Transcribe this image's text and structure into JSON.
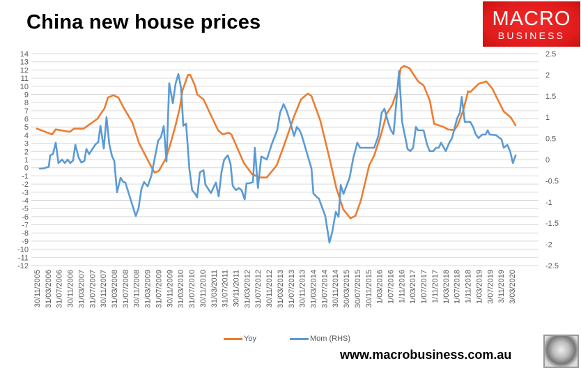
{
  "title": "China new house prices",
  "logo": {
    "line1": "MACRO",
    "line2": "BUSINESS",
    "color": "#e01b1b"
  },
  "website": "www.macrobusiness.com.au",
  "chart_data": {
    "type": "line",
    "title": "China new house prices",
    "x_tick_labels": [
      "30/11/2005",
      "31/03/2006",
      "31/07/2006",
      "30/11/2006",
      "31/03/2007",
      "31/07/2007",
      "30/11/2007",
      "31/03/2008",
      "31/07/2008",
      "30/11/2008",
      "31/03/2009",
      "31/07/2009",
      "30/11/2009",
      "31/03/2010",
      "31/07/2010",
      "30/11/2010",
      "31/03/2011",
      "31/07/2011",
      "30/11/2011",
      "31/03/2012",
      "31/07/2012",
      "30/11/2012",
      "31/03/2013",
      "31/07/2013",
      "30/11/2013",
      "31/03/2014",
      "31/07/2014",
      "30/11/2014",
      "30/03/2015",
      "30/07/2015",
      "30/11/2015",
      "1/03/2016",
      "1/07/2016",
      "1/11/2016",
      "1/03/2017",
      "1/07/2017",
      "1/11/2017",
      "1/03/2018",
      "1/07/2018",
      "1/11/2018",
      "1/03/2019",
      "3/07/2019",
      "3/11/2019",
      "3/03/2020"
    ],
    "x_tick_month_step": 4,
    "x_range_months": [
      0,
      174
    ],
    "left_axis": {
      "ylim": [
        -12,
        14
      ],
      "ticks": [
        "14",
        "13",
        "12",
        "11",
        "10",
        "9",
        "8",
        "7",
        "6",
        "5",
        "4",
        "3",
        "2",
        "1",
        "0",
        "-1",
        "-2",
        "-3",
        "-4",
        "-5",
        "-6",
        "-7",
        "-8",
        "-9",
        "-10",
        "-11",
        "-12"
      ]
    },
    "right_axis": {
      "ylim": [
        -2.5,
        2.5
      ],
      "ticks": [
        "2.5",
        "2",
        "1.5",
        "1",
        "0.5",
        "0",
        "-0.5",
        "-1",
        "-1.5",
        "-2",
        "-2.5"
      ]
    },
    "grid": true,
    "legend_position": "bottom",
    "series": [
      {
        "name": "Yoy",
        "axis": "left",
        "color": "#ed7d31",
        "points_month_value": [
          [
            0,
            4.8
          ],
          [
            5.5,
            4.1
          ],
          [
            6.8,
            4.7
          ],
          [
            11.9,
            4.4
          ],
          [
            13.4,
            4.8
          ],
          [
            16.9,
            4.8
          ],
          [
            21.9,
            6.0
          ],
          [
            24.5,
            7.3
          ],
          [
            25.7,
            8.6
          ],
          [
            27.7,
            8.9
          ],
          [
            29.5,
            8.6
          ],
          [
            31.5,
            7.3
          ],
          [
            34.5,
            5.6
          ],
          [
            37,
            3.0
          ],
          [
            39.6,
            1.3
          ],
          [
            41.6,
            0
          ],
          [
            42.6,
            -0.6
          ],
          [
            44.1,
            -0.4
          ],
          [
            46.6,
            1.1
          ],
          [
            48.4,
            3.0
          ],
          [
            50.2,
            5.2
          ],
          [
            51.7,
            7.3
          ],
          [
            52.7,
            9.5
          ],
          [
            54.7,
            11.4
          ],
          [
            55.5,
            11.4
          ],
          [
            57.3,
            10.0
          ],
          [
            58,
            9.0
          ],
          [
            60.3,
            8.4
          ],
          [
            63.6,
            6.0
          ],
          [
            65.6,
            4.6
          ],
          [
            67.3,
            4.1
          ],
          [
            69.4,
            4.3
          ],
          [
            70.4,
            4.1
          ],
          [
            74.9,
            0.6
          ],
          [
            77.9,
            -0.8
          ],
          [
            80.7,
            -1.2
          ],
          [
            83.2,
            -1.2
          ],
          [
            86.8,
            0.3
          ],
          [
            89.3,
            2.6
          ],
          [
            93.1,
            6.3
          ],
          [
            95.6,
            8.4
          ],
          [
            98.1,
            9.1
          ],
          [
            99.4,
            8.8
          ],
          [
            102.6,
            5.8
          ],
          [
            105.9,
            1.2
          ],
          [
            108.4,
            -2.5
          ],
          [
            110.9,
            -5.1
          ],
          [
            113.5,
            -6.2
          ],
          [
            115.3,
            -5.9
          ],
          [
            117.3,
            -4.0
          ],
          [
            120.3,
            0.3
          ],
          [
            122.1,
            1.5
          ],
          [
            124.6,
            4.1
          ],
          [
            126.6,
            6.6
          ],
          [
            128.6,
            7.7
          ],
          [
            130.4,
            9.4
          ],
          [
            131.7,
            12.2
          ],
          [
            132.9,
            12.5
          ],
          [
            134.9,
            12.2
          ],
          [
            138,
            10.6
          ],
          [
            140,
            10.1
          ],
          [
            142.2,
            8.3
          ],
          [
            143.8,
            5.4
          ],
          [
            145.5,
            5.2
          ],
          [
            147.3,
            5.0
          ],
          [
            148.8,
            4.7
          ],
          [
            151.1,
            4.6
          ],
          [
            152.3,
            5.2
          ],
          [
            154.4,
            7.1
          ],
          [
            156.1,
            9.4
          ],
          [
            156.9,
            9.3
          ],
          [
            159.9,
            10.3
          ],
          [
            162.7,
            10.6
          ],
          [
            164.9,
            9.7
          ],
          [
            166.2,
            8.8
          ],
          [
            169,
            6.9
          ],
          [
            171.5,
            6.2
          ],
          [
            173.3,
            5.2
          ]
        ]
      },
      {
        "name": "Mom (RHS)",
        "axis": "right",
        "color": "#5b9bd5",
        "points_month_value": [
          [
            1,
            -0.21
          ],
          [
            2.3,
            -0.21
          ],
          [
            4.3,
            -0.17
          ],
          [
            4.8,
            0.1
          ],
          [
            5.8,
            0.13
          ],
          [
            6.8,
            0.4
          ],
          [
            7.8,
            -0.08
          ],
          [
            9.1,
            0.0
          ],
          [
            10.1,
            -0.08
          ],
          [
            11.1,
            0.0
          ],
          [
            12.1,
            -0.08
          ],
          [
            13.1,
            -0.02
          ],
          [
            13.9,
            0.35
          ],
          [
            15.1,
            0.05
          ],
          [
            16.1,
            -0.07
          ],
          [
            17.2,
            -0.03
          ],
          [
            17.9,
            0.25
          ],
          [
            18.9,
            0.13
          ],
          [
            21.2,
            0.36
          ],
          [
            22.2,
            0.41
          ],
          [
            23,
            0.8
          ],
          [
            24.2,
            0.26
          ],
          [
            25.2,
            1.0
          ],
          [
            26.2,
            0.36
          ],
          [
            27.2,
            0.08
          ],
          [
            28,
            -0.03
          ],
          [
            29,
            -0.77
          ],
          [
            30.3,
            -0.43
          ],
          [
            31.3,
            -0.53
          ],
          [
            32,
            -0.54
          ],
          [
            35.8,
            -1.33
          ],
          [
            36.8,
            -1.15
          ],
          [
            37.8,
            -0.7
          ],
          [
            38.8,
            -0.53
          ],
          [
            40.1,
            -0.63
          ],
          [
            41.4,
            -0.38
          ],
          [
            43.9,
            0.45
          ],
          [
            44.9,
            0.53
          ],
          [
            45.9,
            0.79
          ],
          [
            46.9,
            -0.05
          ],
          [
            47.9,
            1.8
          ],
          [
            49.2,
            1.33
          ],
          [
            50.2,
            1.79
          ],
          [
            51.2,
            2.02
          ],
          [
            52.2,
            1.68
          ],
          [
            53,
            0.8
          ],
          [
            54,
            0.85
          ],
          [
            55.2,
            -0.23
          ],
          [
            56.2,
            -0.72
          ],
          [
            57.3,
            -0.81
          ],
          [
            58,
            -0.89
          ],
          [
            59,
            -0.3
          ],
          [
            60.3,
            -0.25
          ],
          [
            61,
            -0.59
          ],
          [
            63,
            -0.79
          ],
          [
            64.8,
            -0.54
          ],
          [
            65.8,
            -0.87
          ],
          [
            66.8,
            -0.3
          ],
          [
            67.8,
            0
          ],
          [
            69.1,
            0.1
          ],
          [
            70.1,
            -0.1
          ],
          [
            70.9,
            -0.62
          ],
          [
            72.1,
            -0.72
          ],
          [
            73.1,
            -0.67
          ],
          [
            74.1,
            -0.72
          ],
          [
            75.2,
            -0.94
          ],
          [
            75.9,
            -0.56
          ],
          [
            76.9,
            -0.56
          ],
          [
            78.2,
            -0.53
          ],
          [
            78.9,
            0.28
          ],
          [
            80,
            -0.67
          ],
          [
            81.2,
            0.07
          ],
          [
            82.5,
            0.03
          ],
          [
            83.2,
            0
          ],
          [
            85,
            0.36
          ],
          [
            87,
            0.7
          ],
          [
            88,
            1.1
          ],
          [
            89.3,
            1.31
          ],
          [
            90.5,
            1.14
          ],
          [
            91.8,
            0.86
          ],
          [
            93.1,
            0.56
          ],
          [
            94.1,
            0.77
          ],
          [
            95.1,
            0.69
          ],
          [
            95.8,
            0.59
          ],
          [
            99.4,
            -0.21
          ],
          [
            100.1,
            -0.8
          ],
          [
            101.4,
            -0.89
          ],
          [
            102.1,
            -0.92
          ],
          [
            104.4,
            -1.33
          ],
          [
            105.9,
            -1.96
          ],
          [
            106.9,
            -1.71
          ],
          [
            108.2,
            -1.23
          ],
          [
            109.2,
            -1.35
          ],
          [
            110,
            -0.6
          ],
          [
            111,
            -0.81
          ],
          [
            113.2,
            -0.43
          ],
          [
            114.5,
            0.03
          ],
          [
            116,
            0.4
          ],
          [
            117,
            0.28
          ],
          [
            120.3,
            0.28
          ],
          [
            122.1,
            0.28
          ],
          [
            123.6,
            0.56
          ],
          [
            124.8,
            1.1
          ],
          [
            125.8,
            1.2
          ],
          [
            127.1,
            0.89
          ],
          [
            128.1,
            0.7
          ],
          [
            129.1,
            0.6
          ],
          [
            131.1,
            2.09
          ],
          [
            132.2,
            0.89
          ],
          [
            134.2,
            0.25
          ],
          [
            135.2,
            0.2
          ],
          [
            136.2,
            0.28
          ],
          [
            137.2,
            0.77
          ],
          [
            138,
            0.69
          ],
          [
            140,
            0.69
          ],
          [
            141.2,
            0.36
          ],
          [
            142.2,
            0.2
          ],
          [
            143.5,
            0.2
          ],
          [
            144.5,
            0.28
          ],
          [
            145.5,
            0.28
          ],
          [
            146.3,
            0.4
          ],
          [
            148,
            0.2
          ],
          [
            149.3,
            0.4
          ],
          [
            150.3,
            0.51
          ],
          [
            152.1,
            0.97
          ],
          [
            153.1,
            1.1
          ],
          [
            153.8,
            1.48
          ],
          [
            154.9,
            0.89
          ],
          [
            156.9,
            0.89
          ],
          [
            157.9,
            0.77
          ],
          [
            158.9,
            0.59
          ],
          [
            159.9,
            0.51
          ],
          [
            161.2,
            0.59
          ],
          [
            162.4,
            0.59
          ],
          [
            163.2,
            0.69
          ],
          [
            163.9,
            0.59
          ],
          [
            166.2,
            0.58
          ],
          [
            167.5,
            0.51
          ],
          [
            168.2,
            0.48
          ],
          [
            169,
            0.28
          ],
          [
            170.3,
            0.35
          ],
          [
            171.3,
            0.2
          ],
          [
            172.3,
            -0.08
          ],
          [
            173.3,
            0.1
          ]
        ]
      }
    ]
  }
}
